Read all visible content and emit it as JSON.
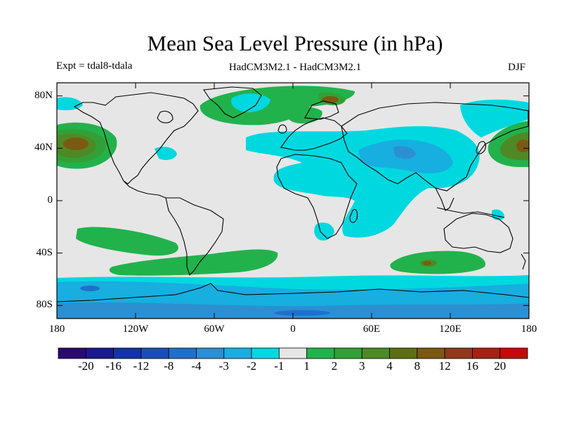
{
  "title": "Mean Sea Level Pressure (in hPa)",
  "expt_label": "Expt = tdal8-tdala",
  "model_label": "HadCM3M2.1 - HadCM3M2.1",
  "season_label": "DJF",
  "map": {
    "projection": "equirectangular",
    "lon_range": [
      -180,
      180
    ],
    "lat_range": [
      -90,
      90
    ],
    "y_ticks": [
      {
        "lat": 80,
        "label": "80N"
      },
      {
        "lat": 40,
        "label": "40N"
      },
      {
        "lat": 0,
        "label": "0"
      },
      {
        "lat": -40,
        "label": "40S"
      },
      {
        "lat": -80,
        "label": "80S"
      }
    ],
    "x_ticks": [
      {
        "lon": -180,
        "label": "180"
      },
      {
        "lon": -120,
        "label": "120W"
      },
      {
        "lon": -60,
        "label": "60W"
      },
      {
        "lon": 0,
        "label": "0"
      },
      {
        "lon": 60,
        "label": "60E"
      },
      {
        "lon": 120,
        "label": "120E"
      },
      {
        "lon": 180,
        "label": "180"
      }
    ],
    "background_color": "#e6e6e6"
  },
  "colorbar": {
    "colors": [
      "#2b0a6e",
      "#1a1a8c",
      "#1433a8",
      "#1a4fb8",
      "#2070c8",
      "#2b8fd2",
      "#17aee0",
      "#00d8e0",
      "#e6e6e6",
      "#22b24c",
      "#33a037",
      "#4d8a25",
      "#5e6e12",
      "#7a5a12",
      "#8e3a1a",
      "#a82014",
      "#c80808"
    ],
    "labels": [
      "-20",
      "-16",
      "-12",
      "-8",
      "-4",
      "-3",
      "-2",
      "-1",
      "1",
      "2",
      "3",
      "4",
      "8",
      "12",
      "16",
      "20"
    ]
  }
}
